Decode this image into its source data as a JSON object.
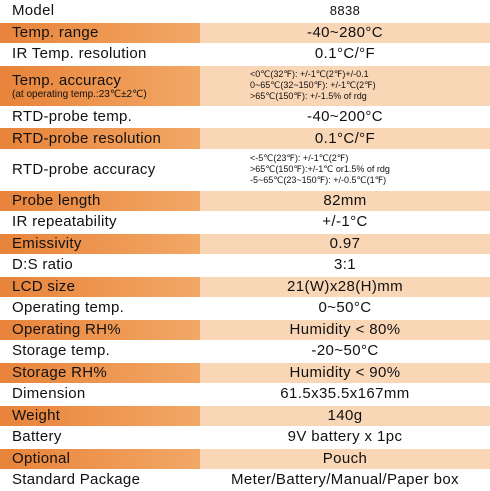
{
  "rows": [
    {
      "label": "Model",
      "value": "8838"
    },
    {
      "label": "Temp. range",
      "value": "-40~280°C"
    },
    {
      "label": "IR Temp. resolution",
      "value": "0.1°C/°F"
    },
    {
      "label": "Temp. accuracy",
      "note": "(at operating temp.:23℃±2℃)",
      "lines": [
        "<0℃(32℉): +/-1℃(2℉)+/-0.1",
        "0~65℃(32~150℉): +/-1℃(2℉)",
        ">65℃(150℉): +/-1.5% of rdg"
      ]
    },
    {
      "label": "RTD-probe temp.",
      "value": "-40~200°C"
    },
    {
      "label": "RTD-probe resolution",
      "value": "0.1°C/°F"
    },
    {
      "label": "RTD-probe accuracy",
      "lines": [
        "<-5℃(23℉): +/-1℃(2℉)",
        ">65℃(150℉):+/-1℃ or1.5% of rdg",
        "-5~65℃(23~150℉): +/-0.5℃(1℉)"
      ]
    },
    {
      "label": "Probe length",
      "value": "82mm"
    },
    {
      "label": "IR repeatability",
      "value": "+/-1°C"
    },
    {
      "label": "Emissivity",
      "value": "0.97"
    },
    {
      "label": "D:S ratio",
      "value": "3:1"
    },
    {
      "label": "LCD size",
      "value": "21(W)x28(H)mm"
    },
    {
      "label": "Operating temp.",
      "value": "0~50°C"
    },
    {
      "label": "Operating RH%",
      "value": "Humidity < 80%"
    },
    {
      "label": "Storage temp.",
      "value": "-20~50°C"
    },
    {
      "label": "Storage RH%",
      "value": "Humidity < 90%"
    },
    {
      "label": "Dimension",
      "value": "61.5x35.5x167mm"
    },
    {
      "label": "Weight",
      "value": "140g"
    },
    {
      "label": "Battery",
      "value": "9V battery x 1pc"
    },
    {
      "label": "Optional",
      "value": "Pouch"
    },
    {
      "label": "Standard Package",
      "value": "Meter/Battery/Manual/Paper box"
    }
  ]
}
